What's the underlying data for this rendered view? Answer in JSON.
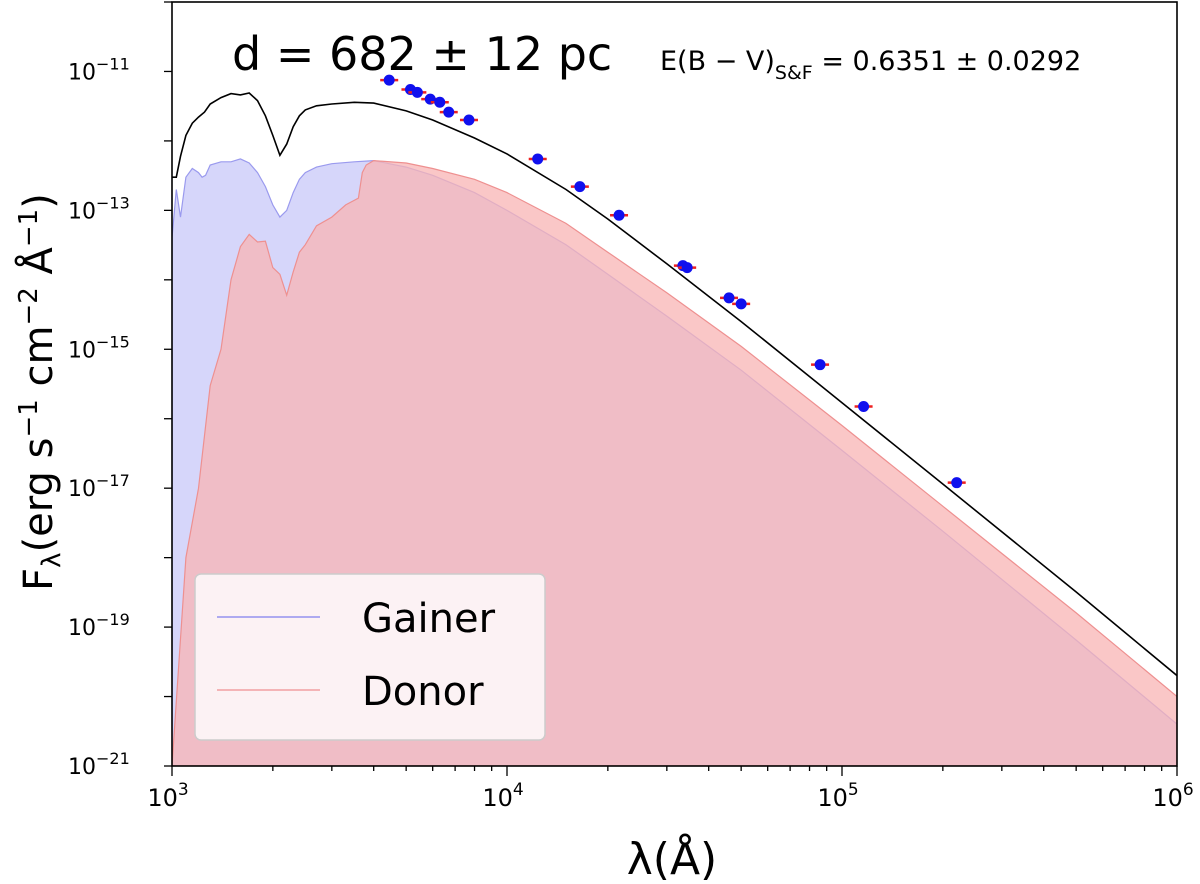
{
  "chart_data": {
    "type": "area",
    "title": "",
    "xlabel": "λ(Å)",
    "ylabel": "F",
    "ylabel_sub": "λ",
    "ylabel_units": "(erg s",
    "ylabel_units_exp1": "−1",
    "ylabel_units_mid": " cm",
    "ylabel_units_exp2": "−2",
    "ylabel_units_end": " Å",
    "ylabel_units_exp3": "−1",
    "ylabel_units_close": ")",
    "x_scale": "log",
    "y_scale": "log",
    "xlim": [
      1000,
      1000000
    ],
    "ylim": [
      1e-21,
      1e-10
    ],
    "x_ticks": [
      {
        "value": 1000,
        "base": "10",
        "exp": "3"
      },
      {
        "value": 10000,
        "base": "10",
        "exp": "4"
      },
      {
        "value": 100000,
        "base": "10",
        "exp": "5"
      },
      {
        "value": 1000000,
        "base": "10",
        "exp": "6"
      }
    ],
    "y_ticks": [
      {
        "value": 1e-11,
        "base": "10",
        "exp": "−11"
      },
      {
        "value": 1e-13,
        "base": "10",
        "exp": "−13"
      },
      {
        "value": 1e-15,
        "base": "10",
        "exp": "−15"
      },
      {
        "value": 1e-17,
        "base": "10",
        "exp": "−17"
      },
      {
        "value": 1e-19,
        "base": "10",
        "exp": "−19"
      },
      {
        "value": 1e-21,
        "base": "10",
        "exp": "−21"
      }
    ],
    "annotations": {
      "distance": "d = 682 ± 12 pc",
      "ebv_prefix": "E(B − V)",
      "ebv_sub": "S&F",
      "ebv_value": " = 0.6351 ± 0.0292"
    },
    "legend": {
      "placement": "lower-left",
      "entries": [
        {
          "label": "Gainer",
          "color": "#8080ee"
        },
        {
          "label": "Donor",
          "color": "#ee9090"
        }
      ]
    },
    "series": [
      {
        "name": "Gainer",
        "kind": "filled-model",
        "fill": "#c8c8f8",
        "stroke": "#9a9aee",
        "x": [
          1000,
          1030,
          1060,
          1100,
          1150,
          1200,
          1230,
          1260,
          1300,
          1400,
          1500,
          1600,
          1700,
          1800,
          1900,
          2000,
          2100,
          2200,
          2300,
          2400,
          2500,
          2700,
          3000,
          3500,
          4000,
          5000,
          6000,
          8000,
          10000,
          15000,
          20000,
          30000,
          50000,
          100000,
          200000,
          500000,
          1000000
        ],
        "y": [
          4e-14,
          2e-13,
          8e-14,
          3e-13,
          4e-13,
          3.5e-13,
          3e-13,
          3.2e-13,
          4.5e-13,
          5e-13,
          5e-13,
          5.5e-13,
          4.8e-13,
          3.5e-13,
          2.2e-13,
          1.2e-13,
          8e-14,
          1e-13,
          1.8e-13,
          2.8e-13,
          3.5e-13,
          4.2e-13,
          4.7e-13,
          5e-13,
          5.2e-13,
          4.2e-13,
          3.2e-13,
          1.8e-13,
          1e-13,
          3.2e-14,
          1.2e-14,
          3e-15,
          5e-16,
          3.5e-17,
          2.4e-18,
          6.5e-20,
          4e-21
        ]
      },
      {
        "name": "Donor",
        "kind": "filled-model",
        "fill": "#f8b4b4",
        "stroke": "#ee9090",
        "x": [
          1000,
          1100,
          1200,
          1300,
          1400,
          1500,
          1600,
          1700,
          1800,
          1900,
          2000,
          2100,
          2200,
          2300,
          2400,
          2500,
          2700,
          3000,
          3300,
          3600,
          3700,
          3800,
          4000,
          5000,
          6000,
          8000,
          10000,
          15000,
          20000,
          30000,
          50000,
          100000,
          200000,
          500000,
          1000000
        ],
        "y": [
          1e-21,
          1e-18,
          1e-17,
          3e-16,
          1e-15,
          1e-14,
          3e-14,
          4.5e-14,
          3.5e-14,
          3.6e-14,
          1.5e-14,
          1.2e-14,
          6e-15,
          1.3e-14,
          2.5e-14,
          3.2e-14,
          6e-14,
          8e-14,
          1.2e-13,
          1.5e-13,
          3.5e-13,
          4.5e-13,
          5.2e-13,
          4.8e-13,
          4e-13,
          2.8e-13,
          1.8e-13,
          6.5e-14,
          2.5e-14,
          6.5e-15,
          1.1e-15,
          8e-17,
          5.5e-18,
          1.6e-19,
          1e-20
        ]
      },
      {
        "name": "Total",
        "kind": "line",
        "stroke": "#000000",
        "x": [
          1000,
          1030,
          1060,
          1100,
          1150,
          1200,
          1250,
          1300,
          1400,
          1500,
          1600,
          1700,
          1800,
          1900,
          2000,
          2100,
          2200,
          2300,
          2400,
          2500,
          2700,
          3000,
          3500,
          4000,
          5000,
          6000,
          8000,
          10000,
          15000,
          20000,
          30000,
          50000,
          100000,
          200000,
          500000,
          1000000
        ],
        "y": [
          3e-13,
          3e-13,
          6e-13,
          1.2e-12,
          1.8e-12,
          2.2e-12,
          2.6e-12,
          3.4e-12,
          4.2e-12,
          4.8e-12,
          4.6e-12,
          4.9e-12,
          3.8e-12,
          2.3e-12,
          1.2e-12,
          6.2e-13,
          9e-13,
          1.6e-12,
          2.3e-12,
          2.8e-12,
          3.2e-12,
          3.4e-12,
          3.6e-12,
          3.5e-12,
          2.7e-12,
          2e-12,
          1.1e-12,
          6.5e-13,
          2e-13,
          7.5e-14,
          1.7e-14,
          2.5e-15,
          1.7e-16,
          1.15e-17,
          3.2e-19,
          2e-20
        ]
      },
      {
        "name": "Observed",
        "kind": "points",
        "color": "#1010ee",
        "errcolor": "#ee2020",
        "x": [
          4450,
          5150,
          5400,
          5900,
          6300,
          6700,
          7700,
          12350,
          16500,
          21600,
          33500,
          34500,
          46000,
          50000,
          86000,
          116000,
          220000
        ],
        "y": [
          7.5e-12,
          5.5e-12,
          5e-12,
          4e-12,
          3.6e-12,
          2.6e-12,
          2e-12,
          5.5e-13,
          2.2e-13,
          8.5e-14,
          1.6e-14,
          1.5e-14,
          5.5e-15,
          4.5e-15,
          6e-16,
          1.5e-16,
          1.2e-17
        ]
      }
    ]
  }
}
